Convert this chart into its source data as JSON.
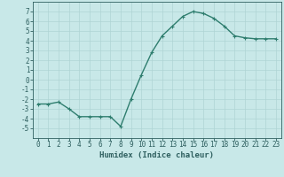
{
  "x": [
    0,
    1,
    2,
    3,
    4,
    5,
    6,
    7,
    8,
    9,
    10,
    11,
    12,
    13,
    14,
    15,
    16,
    17,
    18,
    19,
    20,
    21,
    22,
    23
  ],
  "y": [
    -2.5,
    -2.5,
    -2.3,
    -3.0,
    -3.8,
    -3.8,
    -3.8,
    -3.8,
    -4.8,
    -2.0,
    0.5,
    2.8,
    4.5,
    5.5,
    6.5,
    7.0,
    6.8,
    6.3,
    5.5,
    4.5,
    4.3,
    4.2,
    4.2,
    4.2
  ],
  "line_color": "#2e7d6e",
  "marker": "+",
  "marker_size": 3,
  "bg_color": "#c8e8e8",
  "grid_color": "#afd4d4",
  "xlabel": "Humidex (Indice chaleur)",
  "xlim": [
    -0.5,
    23.5
  ],
  "ylim": [
    -6,
    8
  ],
  "yticks": [
    -5,
    -4,
    -3,
    -2,
    -1,
    0,
    1,
    2,
    3,
    4,
    5,
    6,
    7
  ],
  "xticks": [
    0,
    1,
    2,
    3,
    4,
    5,
    6,
    7,
    8,
    9,
    10,
    11,
    12,
    13,
    14,
    15,
    16,
    17,
    18,
    19,
    20,
    21,
    22,
    23
  ],
  "font_color": "#2e5f5f",
  "tick_fontsize": 5.5,
  "label_fontsize": 6.5,
  "line_width": 1.0
}
